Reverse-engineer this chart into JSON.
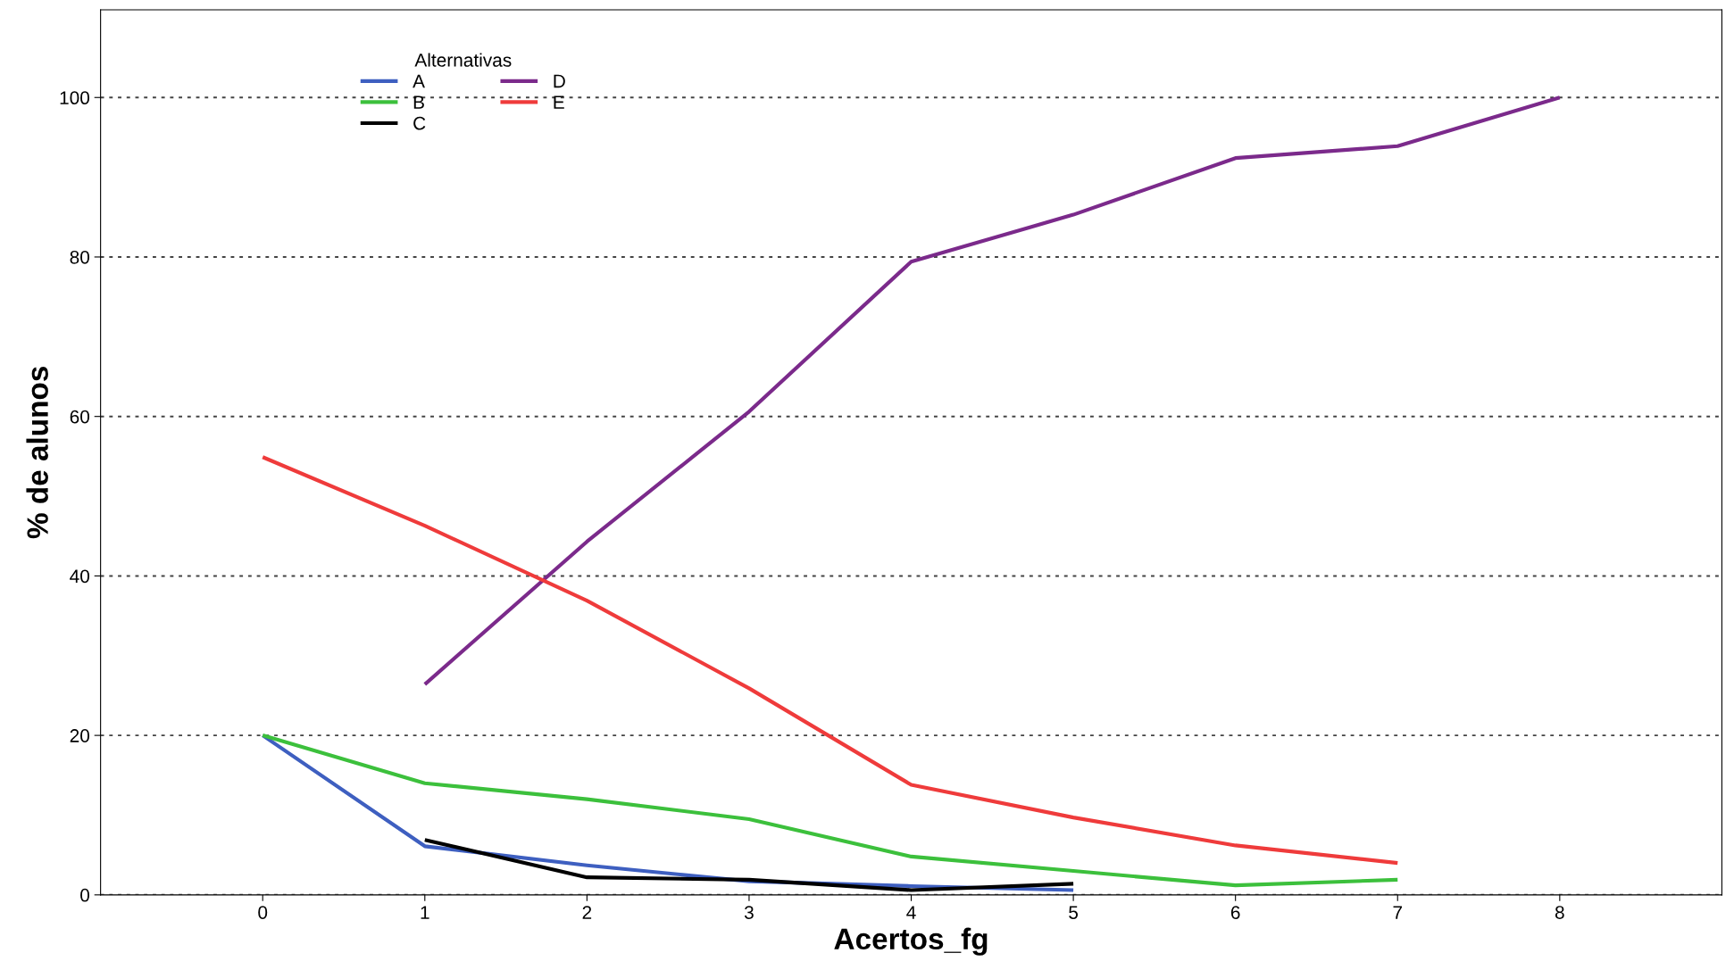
{
  "chart_data": {
    "type": "line",
    "xlabel": "Acertos_fg",
    "ylabel": "% de alunos",
    "legend_title": "Alternativas",
    "xlim": [
      -1,
      9
    ],
    "xticks": [
      0,
      1,
      2,
      3,
      4,
      5,
      6,
      7,
      8
    ],
    "ylim": [
      0,
      111
    ],
    "yticks": [
      0,
      20,
      40,
      60,
      80,
      100
    ],
    "grid": "y",
    "legend": "top left",
    "marker": "none",
    "line_style": "solid",
    "series": [
      {
        "name": "A",
        "color": "#3e5fc0",
        "x": [
          0,
          1,
          2,
          3,
          4,
          5
        ],
        "values": [
          20,
          6.1,
          3.7,
          1.7,
          1.1,
          0.6
        ]
      },
      {
        "name": "B",
        "color": "#3cc03c",
        "x": [
          0,
          1,
          2,
          3,
          4,
          5,
          6,
          7
        ],
        "values": [
          20,
          14.0,
          12.0,
          9.5,
          4.8,
          3.0,
          1.2,
          1.9
        ]
      },
      {
        "name": "C",
        "color": "#000000",
        "x": [
          1,
          2,
          3,
          4,
          5
        ],
        "values": [
          6.9,
          2.2,
          1.9,
          0.6,
          1.4
        ]
      },
      {
        "name": "D",
        "color": "#7b2a8b",
        "x": [
          1,
          2,
          3,
          4,
          5,
          6,
          7,
          8
        ],
        "values": [
          26.4,
          44.3,
          60.6,
          79.4,
          85.3,
          92.4,
          93.9,
          100
        ]
      },
      {
        "name": "E",
        "color": "#ef3b3b",
        "x": [
          0,
          1,
          2,
          3,
          4,
          5,
          6,
          7
        ],
        "values": [
          54.9,
          46.3,
          36.9,
          25.9,
          13.8,
          9.7,
          6.2,
          4.0
        ]
      }
    ]
  }
}
